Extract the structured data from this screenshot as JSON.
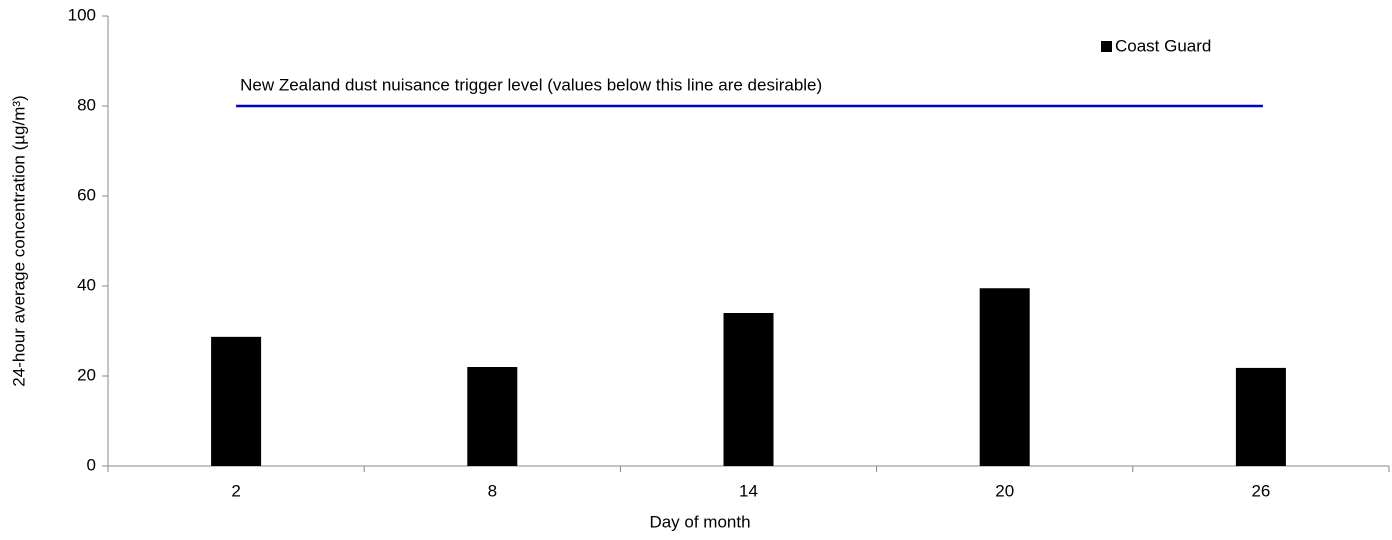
{
  "chart_data": {
    "type": "bar",
    "x_label": "Day of month",
    "y_label": "24-hour average concentration (µg/m³)",
    "categories": [
      "2",
      "8",
      "14",
      "20",
      "26"
    ],
    "series": [
      {
        "name": "Coast Guard",
        "color": "#000000",
        "values": [
          28.7,
          22.0,
          34.0,
          39.5,
          21.8
        ]
      }
    ],
    "ylim": [
      0,
      100
    ],
    "yticks": [
      0,
      20,
      40,
      60,
      80,
      100
    ],
    "reference_line": {
      "value": 80,
      "label": "New Zealand dust nuisance trigger level (values below this line are desirable)",
      "color": "#0000cc"
    },
    "legend": "top-right",
    "grid": false
  }
}
